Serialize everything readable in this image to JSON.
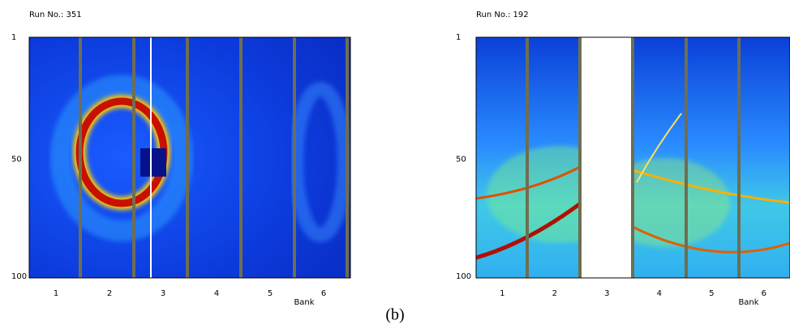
{
  "panels": [
    {
      "run_label": "Run No.: 351",
      "yticks": [
        "1",
        "50",
        "100"
      ],
      "xticks": [
        "1",
        "2",
        "3",
        "4",
        "5",
        "6"
      ],
      "xlabel": "Bank"
    },
    {
      "run_label": "Run No.: 192",
      "yticks": [
        "1",
        "50",
        "100"
      ],
      "xticks": [
        "1",
        "2",
        "3",
        "4",
        "5",
        "6"
      ],
      "xlabel": "Bank"
    }
  ],
  "caption": "(b)"
}
